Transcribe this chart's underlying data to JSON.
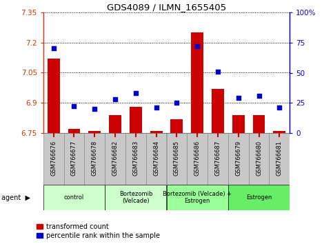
{
  "title": "GDS4089 / ILMN_1655405",
  "samples": [
    "GSM766676",
    "GSM766677",
    "GSM766678",
    "GSM766682",
    "GSM766683",
    "GSM766684",
    "GSM766685",
    "GSM766686",
    "GSM766687",
    "GSM766679",
    "GSM766680",
    "GSM766681"
  ],
  "red_values": [
    7.12,
    6.77,
    6.76,
    6.84,
    6.88,
    6.76,
    6.82,
    7.25,
    6.97,
    6.84,
    6.84,
    6.76
  ],
  "blue_values": [
    70,
    22,
    20,
    28,
    33,
    21,
    25,
    72,
    51,
    29,
    31,
    21
  ],
  "y_min": 6.75,
  "y_max": 7.35,
  "y_ticks": [
    6.75,
    6.9,
    7.05,
    7.2,
    7.35
  ],
  "y_tick_labels": [
    "6.75",
    "6.9",
    "7.05",
    "7.2",
    "7.35"
  ],
  "y2_ticks": [
    0,
    25,
    50,
    75,
    100
  ],
  "y2_tick_labels": [
    "0",
    "25",
    "50",
    "75",
    "100%"
  ],
  "group_spans": [
    {
      "label": "control",
      "indices": [
        0,
        1,
        2
      ],
      "color": "#ccffcc"
    },
    {
      "label": "Bortezomib\n(Velcade)",
      "indices": [
        3,
        4,
        5
      ],
      "color": "#ccffcc"
    },
    {
      "label": "Bortezomib (Velcade) +\nEstrogen",
      "indices": [
        6,
        7,
        8
      ],
      "color": "#99ff99"
    },
    {
      "label": "Estrogen",
      "indices": [
        9,
        10,
        11
      ],
      "color": "#66ee66"
    }
  ],
  "bar_color": "#cc0000",
  "dot_color": "#0000cc",
  "legend_red": "transformed count",
  "legend_blue": "percentile rank within the sample",
  "sample_box_color": "#c8c8c8",
  "sample_box_edge": "#888888"
}
